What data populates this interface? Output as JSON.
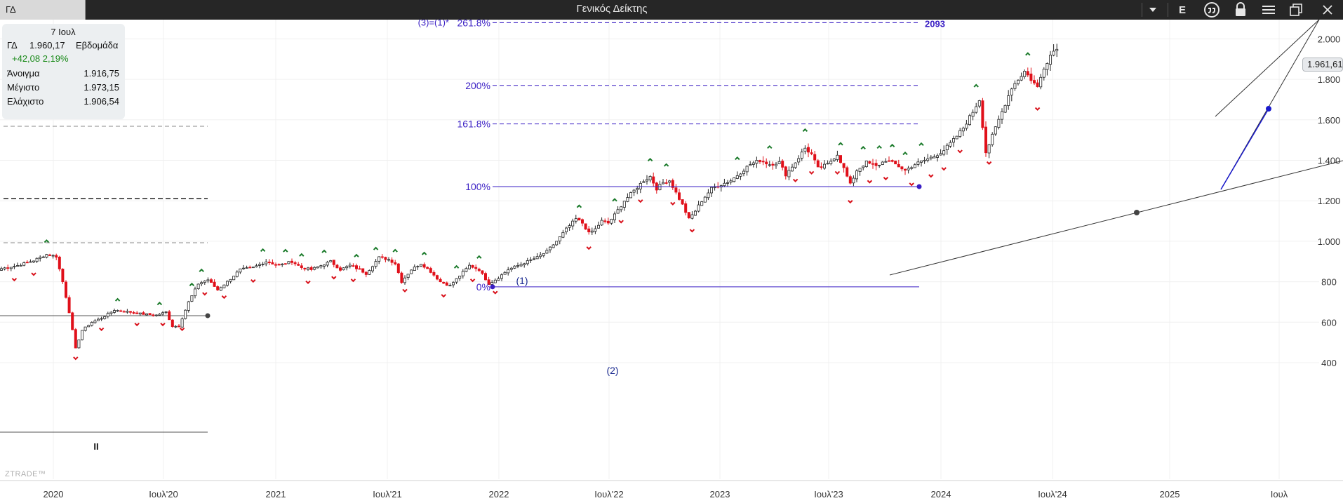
{
  "titlebar": {
    "symbol": "ΓΔ",
    "title": "Γενικός Δείκτης",
    "icons": [
      "chevron-down-icon",
      "letter-e-icon",
      "quote-icon",
      "lock-icon",
      "menu-icon",
      "restore-icon",
      "close-icon"
    ],
    "e_label": "E"
  },
  "info": {
    "date": "7 Ιουλ",
    "symbol": "ΓΔ",
    "price": "1.960,17",
    "period": "Εβδομάδα",
    "change": "+42,08 2,19%",
    "open_label": "Άνοιγμα",
    "open": "1.916,75",
    "high_label": "Μέγιστο",
    "high": "1.973,15",
    "low_label": "Ελάχιστο",
    "low": "1.906,54"
  },
  "price_tag": "1.961,61",
  "watermark": "ZTRADE™",
  "colors": {
    "up": "#ffffff",
    "down": "#e0101a",
    "fib": "#3a1fc4",
    "fractal_up": "#1a7a2a",
    "fractal_down": "#d8101a",
    "change": "#1a8a1a"
  },
  "chart_data": {
    "type": "candlestick",
    "timeframe": "Εβδομάδα",
    "y_ticks": [
      400,
      600,
      800,
      1000,
      1200,
      1400,
      1600,
      1800,
      2000
    ],
    "y_tick_labels": [
      "400",
      "600",
      "800",
      "1.000",
      "1.200",
      "1.400",
      "1.600",
      "1.800",
      "2.000"
    ],
    "x_ticks": [
      "2020",
      "Ιουλ'20",
      "2021",
      "Ιουλ'21",
      "2022",
      "Ιουλ'22",
      "2023",
      "Ιουλ'23",
      "2024",
      "Ιουλ'24",
      "2025",
      "Ιουλ"
    ],
    "fib_levels": [
      {
        "label": "0%",
        "value": 775
      },
      {
        "label": "100%",
        "value": 1270
      },
      {
        "label": "161.8%",
        "value": 1580
      },
      {
        "label": "200%",
        "value": 1770
      },
      {
        "label": "261.8%",
        "value": 2080
      }
    ],
    "fib_top_label": "(3)=(1)*",
    "fib_target": "2093",
    "wave_labels": [
      "(1)",
      "(2)"
    ],
    "low_marker": "II",
    "anchors": [
      {
        "t": 0,
        "v": 865
      },
      {
        "t": 5,
        "v": 880
      },
      {
        "t": 10,
        "v": 905
      },
      {
        "t": 14,
        "v": 935
      },
      {
        "t": 17,
        "v": 925
      },
      {
        "t": 19,
        "v": 800
      },
      {
        "t": 21,
        "v": 650
      },
      {
        "t": 23,
        "v": 470
      },
      {
        "t": 25,
        "v": 560
      },
      {
        "t": 28,
        "v": 600
      },
      {
        "t": 31,
        "v": 620
      },
      {
        "t": 35,
        "v": 660
      },
      {
        "t": 40,
        "v": 650
      },
      {
        "t": 44,
        "v": 640
      },
      {
        "t": 48,
        "v": 635
      },
      {
        "t": 51,
        "v": 650
      },
      {
        "t": 53,
        "v": 580
      },
      {
        "t": 55,
        "v": 580
      },
      {
        "t": 58,
        "v": 700
      },
      {
        "t": 61,
        "v": 790
      },
      {
        "t": 64,
        "v": 810
      },
      {
        "t": 67,
        "v": 760
      },
      {
        "t": 70,
        "v": 800
      },
      {
        "t": 74,
        "v": 860
      },
      {
        "t": 78,
        "v": 870
      },
      {
        "t": 82,
        "v": 900
      },
      {
        "t": 86,
        "v": 880
      },
      {
        "t": 90,
        "v": 900
      },
      {
        "t": 93,
        "v": 870
      },
      {
        "t": 96,
        "v": 860
      },
      {
        "t": 99,
        "v": 880
      },
      {
        "t": 102,
        "v": 900
      },
      {
        "t": 105,
        "v": 860
      },
      {
        "t": 108,
        "v": 880
      },
      {
        "t": 111,
        "v": 860
      },
      {
        "t": 113,
        "v": 840
      },
      {
        "t": 115,
        "v": 880
      },
      {
        "t": 117,
        "v": 920
      },
      {
        "t": 120,
        "v": 910
      },
      {
        "t": 122,
        "v": 890
      },
      {
        "t": 124,
        "v": 800
      },
      {
        "t": 127,
        "v": 860
      },
      {
        "t": 130,
        "v": 890
      },
      {
        "t": 133,
        "v": 850
      },
      {
        "t": 136,
        "v": 800
      },
      {
        "t": 139,
        "v": 780
      },
      {
        "t": 142,
        "v": 830
      },
      {
        "t": 145,
        "v": 880
      },
      {
        "t": 148,
        "v": 860
      },
      {
        "t": 151,
        "v": 790
      },
      {
        "t": 154,
        "v": 820
      },
      {
        "t": 157,
        "v": 860
      },
      {
        "t": 160,
        "v": 880
      },
      {
        "t": 163,
        "v": 900
      },
      {
        "t": 166,
        "v": 920
      },
      {
        "t": 169,
        "v": 950
      },
      {
        "t": 172,
        "v": 1000
      },
      {
        "t": 175,
        "v": 1060
      },
      {
        "t": 178,
        "v": 1110
      },
      {
        "t": 180,
        "v": 1090
      },
      {
        "t": 182,
        "v": 1040
      },
      {
        "t": 184,
        "v": 1060
      },
      {
        "t": 186,
        "v": 1100
      },
      {
        "t": 188,
        "v": 1090
      },
      {
        "t": 190,
        "v": 1130
      },
      {
        "t": 193,
        "v": 1200
      },
      {
        "t": 196,
        "v": 1250
      },
      {
        "t": 199,
        "v": 1300
      },
      {
        "t": 201,
        "v": 1320
      },
      {
        "t": 203,
        "v": 1260
      },
      {
        "t": 205,
        "v": 1290
      },
      {
        "t": 207,
        "v": 1300
      },
      {
        "t": 209,
        "v": 1240
      },
      {
        "t": 211,
        "v": 1180
      },
      {
        "t": 213,
        "v": 1110
      },
      {
        "t": 215,
        "v": 1150
      },
      {
        "t": 217,
        "v": 1200
      },
      {
        "t": 220,
        "v": 1260
      },
      {
        "t": 223,
        "v": 1280
      },
      {
        "t": 226,
        "v": 1300
      },
      {
        "t": 229,
        "v": 1340
      },
      {
        "t": 232,
        "v": 1380
      },
      {
        "t": 235,
        "v": 1400
      },
      {
        "t": 238,
        "v": 1380
      },
      {
        "t": 241,
        "v": 1390
      },
      {
        "t": 243,
        "v": 1330
      },
      {
        "t": 246,
        "v": 1390
      },
      {
        "t": 249,
        "v": 1460
      },
      {
        "t": 251,
        "v": 1430
      },
      {
        "t": 253,
        "v": 1360
      },
      {
        "t": 256,
        "v": 1380
      },
      {
        "t": 259,
        "v": 1430
      },
      {
        "t": 261,
        "v": 1360
      },
      {
        "t": 263,
        "v": 1280
      },
      {
        "t": 265,
        "v": 1350
      },
      {
        "t": 268,
        "v": 1390
      },
      {
        "t": 271,
        "v": 1370
      },
      {
        "t": 274,
        "v": 1400
      },
      {
        "t": 277,
        "v": 1380
      },
      {
        "t": 280,
        "v": 1350
      },
      {
        "t": 283,
        "v": 1380
      },
      {
        "t": 286,
        "v": 1400
      },
      {
        "t": 289,
        "v": 1420
      },
      {
        "t": 292,
        "v": 1450
      },
      {
        "t": 295,
        "v": 1500
      },
      {
        "t": 298,
        "v": 1560
      },
      {
        "t": 301,
        "v": 1640
      },
      {
        "t": 303,
        "v": 1700
      },
      {
        "t": 305,
        "v": 1440
      },
      {
        "t": 307,
        "v": 1520
      },
      {
        "t": 309,
        "v": 1600
      },
      {
        "t": 311,
        "v": 1680
      },
      {
        "t": 313,
        "v": 1760
      },
      {
        "t": 315,
        "v": 1800
      },
      {
        "t": 317,
        "v": 1840
      },
      {
        "t": 319,
        "v": 1800
      },
      {
        "t": 321,
        "v": 1760
      },
      {
        "t": 323,
        "v": 1860
      },
      {
        "t": 325,
        "v": 1920
      },
      {
        "t": 327,
        "v": 1960
      }
    ],
    "fractals_up": [
      14,
      36,
      49,
      59,
      62,
      81,
      88,
      93,
      100,
      110,
      116,
      122,
      131,
      141,
      148,
      179,
      190,
      201,
      206,
      228,
      238,
      249,
      260,
      267,
      272,
      276,
      280,
      285,
      302,
      318
    ],
    "fractals_down": [
      4,
      10,
      23,
      31,
      42,
      50,
      56,
      63,
      69,
      78,
      95,
      103,
      109,
      125,
      137,
      146,
      153,
      182,
      192,
      198,
      208,
      214,
      246,
      251,
      259,
      263,
      269,
      274,
      282,
      288,
      292,
      297,
      306,
      321
    ]
  }
}
